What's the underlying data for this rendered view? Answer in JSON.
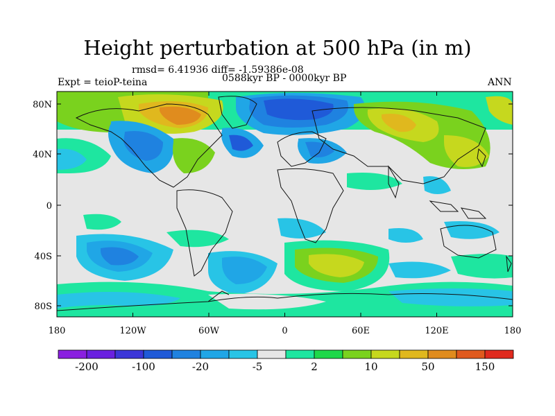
{
  "title": "Height perturbation at 500 hPa (in m)",
  "stats": "rmsd= 6.41936 diff= -1.59386e-08",
  "expt": "Expt = teioP-teina",
  "period": "0588kyr BP - 0000kyr BP",
  "season": "ANN",
  "lat_labels": [
    "80N",
    "40N",
    "0",
    "40S",
    "80S"
  ],
  "lon_labels": [
    "180",
    "120W",
    "60W",
    "0",
    "60E",
    "120E",
    "180"
  ],
  "colorbar": {
    "labels": [
      "-200",
      "-100",
      "-20",
      "-5",
      "2",
      "10",
      "50",
      "150"
    ],
    "colors": [
      "#8a1fe0",
      "#6a20e0",
      "#3c36d8",
      "#1f5ad8",
      "#1f82e0",
      "#20a6e6",
      "#28c4e6",
      "#e6e6e6",
      "#1ee6a0",
      "#1ed84a",
      "#7ad21e",
      "#c6d81e",
      "#e0b81e",
      "#e08c1e",
      "#e05a1e",
      "#e02a1e"
    ]
  },
  "map_colors": {
    "background": "#e6e6e6",
    "coast": "#111111"
  }
}
